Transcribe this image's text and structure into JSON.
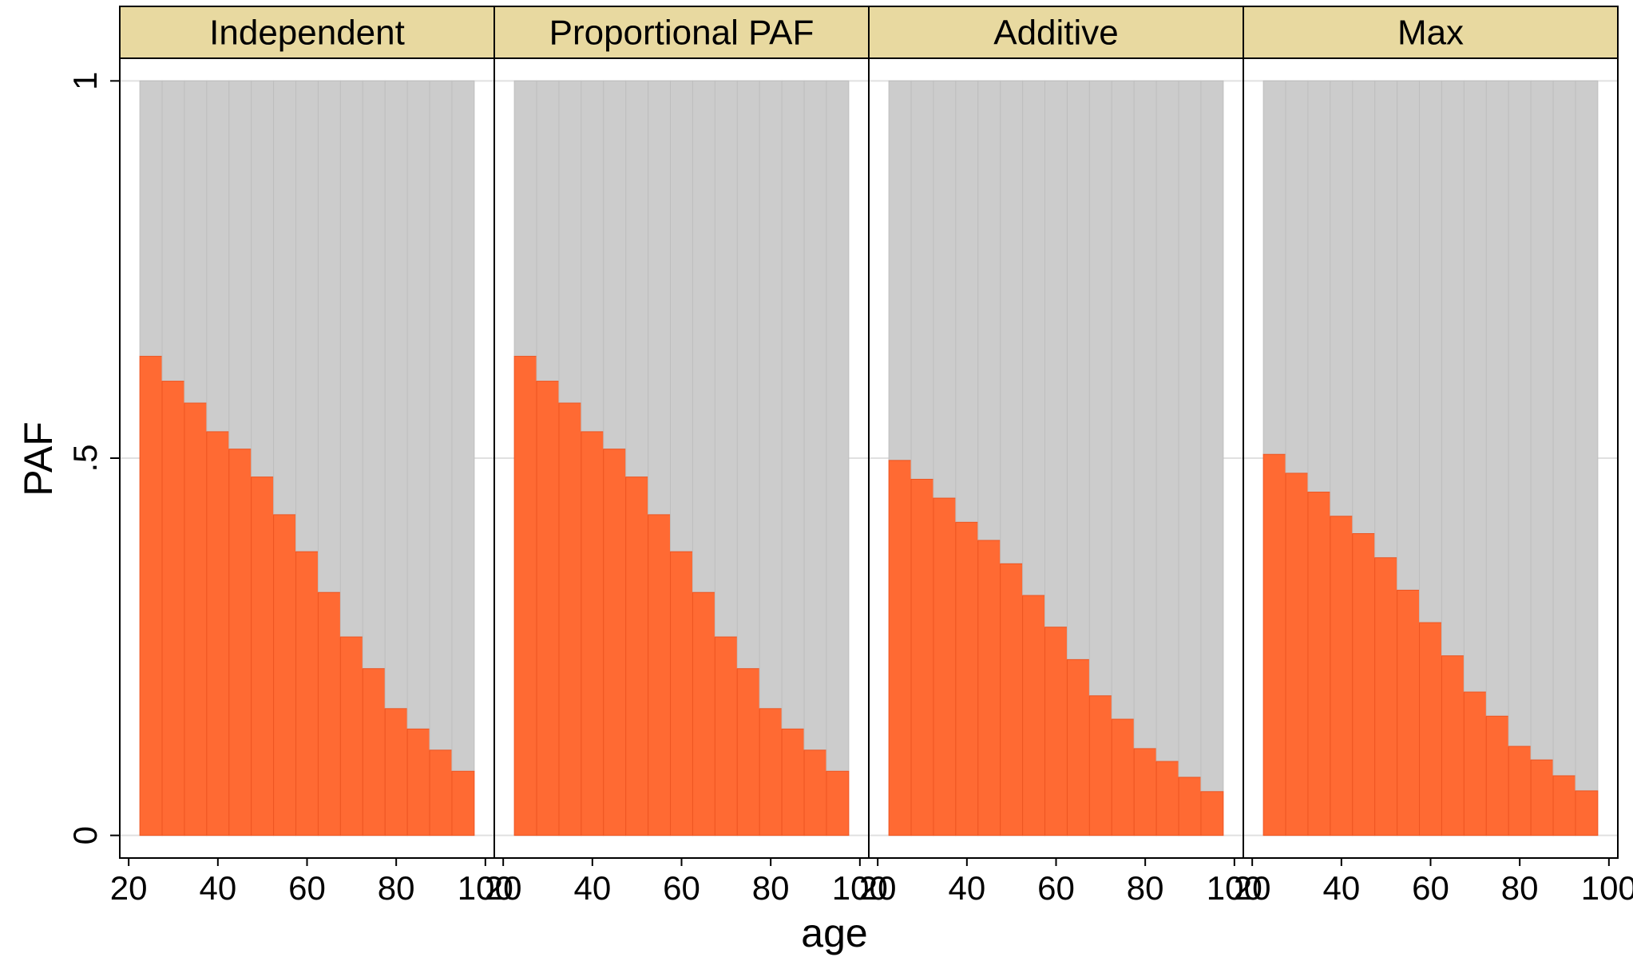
{
  "chart_data": {
    "type": "bar",
    "layout": "faceted stacked histogram",
    "xlabel": "age",
    "ylabel": "PAF",
    "xlim": [
      18,
      102
    ],
    "ylim": [
      -0.03,
      1.03
    ],
    "xticks": [
      20,
      40,
      60,
      80,
      100
    ],
    "xtick_labels": [
      "20",
      "40",
      "60",
      "80",
      "100"
    ],
    "yticks": [
      0,
      0.5,
      1
    ],
    "ytick_labels": [
      "0",
      ".5",
      "1"
    ],
    "grid": true,
    "bin_width": 5,
    "bin_starts": [
      22.5,
      27.5,
      32.5,
      37.5,
      42.5,
      47.5,
      52.5,
      57.5,
      62.5,
      67.5,
      72.5,
      77.5,
      82.5,
      87.5,
      92.5
    ],
    "colors": {
      "paf": "#FF6A33",
      "remainder": "#CCCCCC",
      "strip": "#E8D9A0",
      "grid": "#E0E0E0"
    },
    "panels": [
      {
        "name": "Independent",
        "values": [
          0.635,
          0.602,
          0.573,
          0.535,
          0.512,
          0.475,
          0.425,
          0.376,
          0.322,
          0.263,
          0.221,
          0.168,
          0.141,
          0.113,
          0.085
        ]
      },
      {
        "name": "Proportional PAF",
        "values": [
          0.635,
          0.602,
          0.573,
          0.535,
          0.512,
          0.475,
          0.425,
          0.376,
          0.322,
          0.263,
          0.221,
          0.168,
          0.141,
          0.113,
          0.085
        ]
      },
      {
        "name": "Additive",
        "values": [
          0.497,
          0.472,
          0.447,
          0.415,
          0.391,
          0.36,
          0.318,
          0.276,
          0.233,
          0.185,
          0.154,
          0.115,
          0.098,
          0.077,
          0.058
        ]
      },
      {
        "name": "Max",
        "values": [
          0.505,
          0.48,
          0.455,
          0.423,
          0.4,
          0.368,
          0.325,
          0.282,
          0.238,
          0.19,
          0.158,
          0.118,
          0.1,
          0.079,
          0.059
        ]
      }
    ]
  }
}
